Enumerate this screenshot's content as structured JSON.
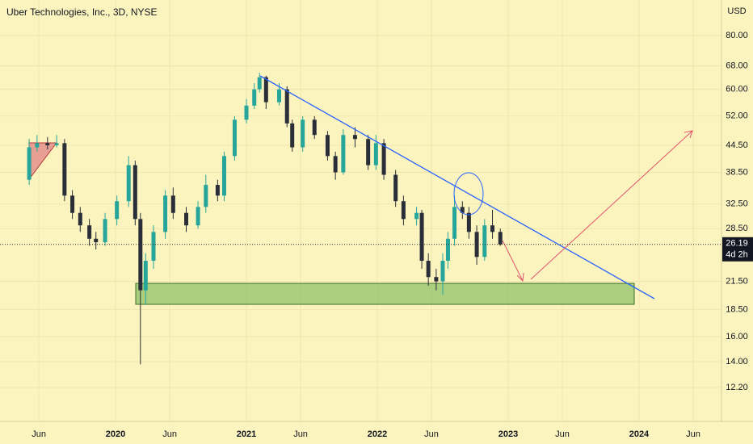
{
  "chart_data": {
    "type": "candlestick",
    "title": "Uber Technologies, Inc., 3D, NYSE",
    "currency": "USD",
    "log_scale": true,
    "grid": true,
    "up_color": "#26a69a",
    "down_color": "#2a2e39",
    "last_price": 26.19,
    "countdown": "4d 2h",
    "x": [
      2019.34,
      2019.4,
      2019.48,
      2019.55,
      2019.61,
      2019.67,
      2019.73,
      2019.8,
      2019.85,
      2019.92,
      2020.01,
      2020.1,
      2020.15,
      2020.19,
      2020.23,
      2020.29,
      2020.38,
      2020.44,
      2020.54,
      2020.63,
      2020.69,
      2020.78,
      2020.83,
      2020.91,
      2021.0,
      2021.06,
      2021.1,
      2021.15,
      2021.25,
      2021.31,
      2021.35,
      2021.43,
      2021.52,
      2021.62,
      2021.68,
      2021.74,
      2021.83,
      2021.93,
      2021.99,
      2022.05,
      2022.14,
      2022.2,
      2022.3,
      2022.34,
      2022.39,
      2022.45,
      2022.5,
      2022.54,
      2022.59,
      2022.65,
      2022.7,
      2022.76,
      2022.82,
      2022.88,
      2022.94
    ],
    "open": [
      37,
      44,
      45,
      44.5,
      45,
      34,
      31,
      29,
      27,
      26.5,
      30,
      33,
      40,
      30,
      20.5,
      24,
      28,
      34,
      31,
      29,
      32,
      36,
      34,
      42,
      51,
      55,
      60,
      64,
      56,
      60,
      50,
      44,
      51,
      47,
      42,
      38.5,
      47,
      46,
      40,
      45,
      38,
      33,
      30,
      31,
      24,
      22,
      21.5,
      24,
      27,
      32,
      31,
      28,
      24.5,
      29,
      28
    ],
    "high": [
      46,
      47,
      46.5,
      47,
      46,
      35,
      32,
      30,
      28,
      31,
      34,
      42,
      41,
      31,
      25,
      29,
      35,
      35.5,
      32,
      33,
      38,
      37,
      43,
      52,
      57,
      62,
      65.5,
      64.5,
      62,
      61,
      51,
      52,
      52,
      48,
      43,
      48.5,
      49,
      47,
      47,
      46,
      39,
      34,
      32,
      31.5,
      25,
      23,
      25,
      28,
      34,
      33,
      32,
      29,
      30,
      31.5,
      28.5
    ],
    "low": [
      36,
      43,
      43.5,
      44,
      33,
      30,
      28,
      26,
      25.5,
      26,
      29,
      32,
      29,
      13.8,
      19,
      23,
      27,
      30,
      28,
      28.5,
      31,
      33,
      33,
      41,
      50,
      54,
      59,
      54,
      55,
      49,
      43,
      43,
      46,
      41,
      37,
      38,
      44,
      39,
      39,
      37,
      32,
      29,
      29,
      23,
      21,
      20.5,
      20,
      23,
      26,
      30,
      27,
      23.5,
      24,
      27,
      26
    ],
    "close": [
      44,
      45,
      44.5,
      45,
      34,
      31,
      29,
      27,
      26.5,
      30,
      33,
      40,
      30,
      20.5,
      24,
      28,
      34,
      31,
      29,
      32,
      36,
      34,
      42,
      51,
      55,
      60,
      64,
      56,
      60,
      50,
      44,
      51,
      47,
      42,
      38.5,
      47,
      46,
      40,
      45,
      38,
      33,
      30,
      31,
      24,
      22,
      21.5,
      24,
      27,
      32,
      31,
      28,
      24.5,
      29,
      28,
      26.19
    ],
    "xlim": [
      2019.117,
      2024.63
    ],
    "xticks": [
      {
        "value": 2019.414,
        "label": "Jun"
      },
      {
        "value": 2020,
        "label": "2020"
      },
      {
        "value": 2020.414,
        "label": "Jun"
      },
      {
        "value": 2021,
        "label": "2021"
      },
      {
        "value": 2021.414,
        "label": "Jun"
      },
      {
        "value": 2022,
        "label": "2022"
      },
      {
        "value": 2022.414,
        "label": "Jun"
      },
      {
        "value": 2023,
        "label": "2023"
      },
      {
        "value": 2023.414,
        "label": "Jun"
      },
      {
        "value": 2024,
        "label": "2024"
      },
      {
        "value": 2024.414,
        "label": "Jun"
      }
    ],
    "ylim": [
      10.35,
      96.7
    ],
    "yticks": [
      {
        "value": 12.2,
        "label": "12.20"
      },
      {
        "value": 14,
        "label": "14.00"
      },
      {
        "value": 16,
        "label": "16.00"
      },
      {
        "value": 18.5,
        "label": "18.50"
      },
      {
        "value": 21.5,
        "label": "21.50"
      },
      {
        "value": 28.5,
        "label": "28.50"
      },
      {
        "value": 32.5,
        "label": "32.50"
      },
      {
        "value": 38.5,
        "label": "38.50"
      },
      {
        "value": 44.5,
        "label": "44.50"
      },
      {
        "value": 52,
        "label": "52.00"
      },
      {
        "value": 60,
        "label": "60.00"
      },
      {
        "value": 68,
        "label": "68.00"
      },
      {
        "value": 80,
        "label": "80.00"
      }
    ]
  }
}
